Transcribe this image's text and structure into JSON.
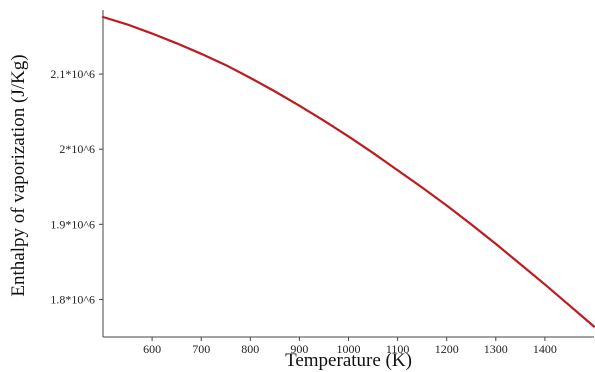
{
  "chart_data": {
    "type": "line",
    "title": "",
    "xlabel": "Temperature (K)",
    "ylabel": "Enthalpy of vaporization (J/Kg)",
    "xlim": [
      500,
      1500
    ],
    "ylim": [
      1750000,
      2180000
    ],
    "x_ticks": [
      600,
      700,
      800,
      900,
      1000,
      1100,
      1200,
      1300,
      1400
    ],
    "x_tick_labels": [
      "600",
      "700",
      "800",
      "900",
      "1000",
      "1100",
      "1200",
      "1300",
      "1400"
    ],
    "y_ticks": [
      1800000,
      1900000,
      2000000,
      2100000
    ],
    "y_tick_labels": [
      "1.8*10^6",
      "1.9*10^6",
      "2*10^6",
      "2.1*10^6"
    ],
    "grid": false,
    "legend": "none",
    "series": [
      {
        "color": "#c0191f",
        "x": [
          500,
          550,
          600,
          650,
          700,
          750,
          800,
          850,
          900,
          950,
          1000,
          1050,
          1100,
          1150,
          1200,
          1250,
          1300,
          1350,
          1400,
          1450,
          1500
        ],
        "y": [
          2176000,
          2166000,
          2154000,
          2141000,
          2127000,
          2112000,
          2095000,
          2077000,
          2058000,
          2038000,
          2017000,
          1995000,
          1972000,
          1949000,
          1925000,
          1900000,
          1874000,
          1847000,
          1820000,
          1792000,
          1764000
        ]
      }
    ]
  }
}
